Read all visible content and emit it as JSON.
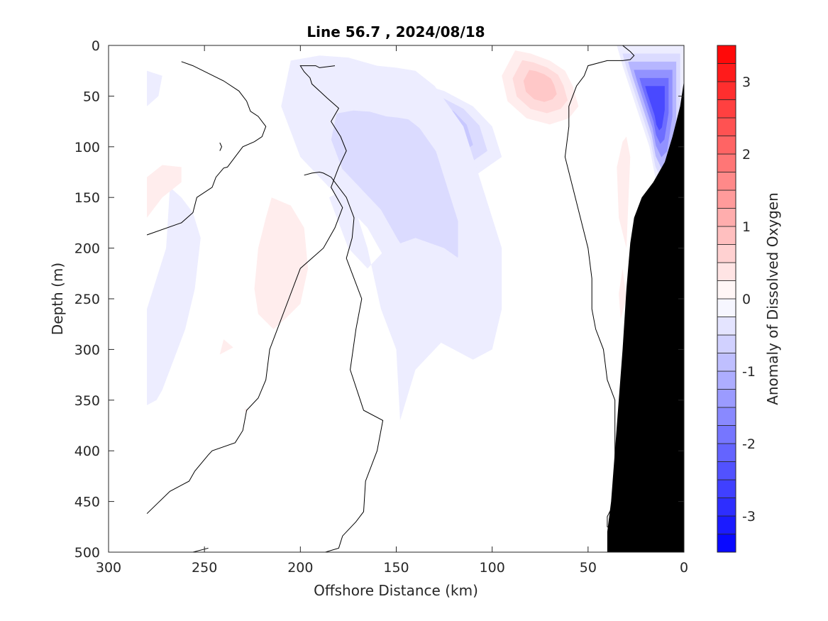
{
  "chart_data": {
    "type": "heatmap",
    "title": "Line 56.7 , 2024/08/18",
    "xlabel": "Offshore Distance (km)",
    "ylabel": "Depth (m)",
    "colorbar_label": "Anomaly of Dissolved Oxygen",
    "xlim": [
      300,
      0
    ],
    "ylim": [
      500,
      0
    ],
    "x_direction": "reversed",
    "y_direction": "reversed",
    "xticks": [
      300,
      250,
      200,
      150,
      100,
      50,
      0
    ],
    "yticks": [
      0,
      50,
      100,
      150,
      200,
      250,
      300,
      350,
      400,
      450,
      500
    ],
    "colorbar_range": [
      -3.5,
      3.5
    ],
    "colorbar_step": 0.25,
    "colorbar_ticks": [
      3,
      2,
      1,
      0,
      -1,
      -2,
      -3
    ],
    "colors": {
      "negative": "#0000ff",
      "positive": "#ff0000",
      "land": "#000000",
      "contour": "#000000"
    },
    "zero_contour_lines": [
      {
        "x": [
          280,
          268,
          258,
          255,
          248,
          246,
          234,
          230,
          228,
          222,
          218,
          216,
          212,
          206,
          200,
          188,
          182,
          178,
          184,
          180,
          176,
          179,
          184,
          180,
          186,
          190,
          194,
          195,
          198,
          200,
          192,
          190,
          182
        ],
        "y": [
          462,
          440,
          430,
          420,
          404,
          400,
          392,
          380,
          360,
          348,
          330,
          300,
          280,
          250,
          220,
          200,
          180,
          160,
          140,
          120,
          104,
          90,
          75,
          62,
          52,
          45,
          38,
          32,
          26,
          20,
          20,
          22,
          20
        ]
      },
      {
        "x": [
          280,
          262,
          256,
          254,
          246,
          244,
          240,
          238,
          234,
          230,
          224,
          220,
          218,
          222,
          226,
          228,
          232,
          240,
          256,
          262
        ],
        "y": [
          187,
          175,
          165,
          150,
          140,
          130,
          121,
          120,
          110,
          100,
          95,
          90,
          80,
          70,
          65,
          55,
          45,
          35,
          20,
          16
        ]
      },
      {
        "x": [
          187,
          180,
          178,
          171,
          167,
          166,
          160,
          157,
          167,
          174,
          171,
          168,
          176,
          173,
          172,
          176,
          180,
          184,
          188,
          190,
          194,
          198
        ],
        "y": [
          500,
          496,
          484,
          470,
          460,
          430,
          400,
          370,
          360,
          320,
          280,
          250,
          210,
          190,
          170,
          150,
          140,
          130,
          126,
          125,
          126,
          128
        ]
      },
      {
        "x": [
          33,
          40,
          40,
          36,
          36,
          40,
          42,
          46,
          48,
          48,
          50,
          54,
          58,
          62,
          60,
          60,
          58,
          56,
          52,
          50,
          40,
          32,
          28,
          26,
          28,
          30,
          32,
          36,
          40,
          42
        ],
        "y": [
          480,
          475,
          465,
          450,
          350,
          330,
          300,
          280,
          260,
          230,
          200,
          170,
          140,
          110,
          80,
          60,
          50,
          40,
          30,
          20,
          15,
          15,
          14,
          10,
          6,
          3,
          0,
          -2,
          -5,
          -5
        ]
      },
      {
        "x": [
          256,
          248
        ],
        "y": [
          500,
          496
        ]
      },
      {
        "x": [
          242,
          241,
          242
        ],
        "y": [
          96,
          100,
          104
        ]
      }
    ],
    "land_boundary": {
      "x": [
        0,
        2,
        6,
        10,
        16,
        22,
        26,
        28,
        30,
        32,
        34,
        36,
        38,
        40,
        40,
        0
      ],
      "y": [
        35,
        60,
        90,
        115,
        135,
        150,
        170,
        195,
        240,
        300,
        350,
        400,
        450,
        480,
        500,
        500
      ]
    },
    "anomaly_features": [
      {
        "kind": "negative",
        "levels": [
          -0.25,
          -0.5,
          -0.75,
          -1.0,
          -1.25
        ],
        "x": [
          150,
          140,
          125,
          110,
          100,
          95,
          110,
          125,
          140,
          150,
          160,
          170,
          175,
          165,
          160,
          150
        ],
        "y": [
          40,
          36,
          45,
          60,
          80,
          110,
          130,
          140,
          120,
          90,
          80,
          75,
          60,
          50,
          45,
          40
        ]
      },
      {
        "kind": "negative",
        "levels": [
          -0.25,
          -0.5
        ],
        "x": [
          205,
          190,
          175,
          160,
          150,
          140,
          130,
          115,
          105,
          95,
          95,
          100,
          110,
          120,
          130,
          140,
          150,
          165,
          180,
          200,
          210,
          205
        ],
        "y": [
          15,
          10,
          12,
          20,
          22,
          25,
          40,
          80,
          140,
          200,
          260,
          300,
          310,
          300,
          290,
          260,
          230,
          180,
          150,
          110,
          60,
          15
        ]
      },
      {
        "kind": "negative",
        "levels": [
          -0.25
        ],
        "x": [
          185,
          175,
          165,
          158,
          150,
          148,
          140,
          130,
          120,
          110,
          105,
          110,
          125,
          140,
          155,
          165,
          175,
          185
        ],
        "y": [
          150,
          140,
          200,
          260,
          300,
          370,
          320,
          300,
          280,
          300,
          260,
          220,
          200,
          190,
          200,
          220,
          200,
          150
        ]
      },
      {
        "kind": "negative",
        "levels": [
          -0.25
        ],
        "x": [
          268,
          262,
          256,
          252,
          255,
          260,
          268,
          272,
          275,
          280,
          280,
          270,
          268
        ],
        "y": [
          140,
          150,
          165,
          190,
          240,
          280,
          320,
          340,
          350,
          355,
          260,
          200,
          140
        ]
      },
      {
        "kind": "negative",
        "levels": [
          -0.25
        ],
        "x": [
          280,
          272,
          274,
          280
        ],
        "y": [
          25,
          30,
          50,
          60
        ]
      },
      {
        "kind": "negative",
        "levels": [
          -0.25,
          -0.5,
          -1.0,
          -1.5,
          -2.0,
          -2.5
        ],
        "x": [
          0,
          10,
          20,
          35,
          32,
          25,
          18,
          15,
          10,
          5,
          0,
          0
        ],
        "y": [
          0,
          0,
          0,
          0,
          20,
          60,
          100,
          130,
          150,
          140,
          80,
          0
        ]
      },
      {
        "kind": "positive",
        "levels": [
          0.25,
          0.5,
          0.75
        ],
        "x": [
          88,
          80,
          70,
          62,
          58,
          55,
          60,
          70,
          82,
          92,
          95,
          88
        ],
        "y": [
          5,
          8,
          15,
          25,
          40,
          60,
          72,
          78,
          72,
          55,
          30,
          5
        ]
      },
      {
        "kind": "positive",
        "levels": [
          0.25
        ],
        "x": [
          215,
          205,
          198,
          196,
          200,
          208,
          214,
          222,
          224,
          222,
          218,
          215
        ],
        "y": [
          150,
          158,
          180,
          220,
          255,
          270,
          280,
          265,
          240,
          200,
          170,
          150
        ]
      },
      {
        "kind": "positive",
        "levels": [
          0.25
        ],
        "x": [
          262,
          272,
          280,
          280,
          272,
          262
        ],
        "y": [
          120,
          118,
          130,
          170,
          150,
          135
        ]
      },
      {
        "kind": "positive",
        "levels": [
          0.25
        ],
        "x": [
          28,
          30,
          32,
          35,
          34,
          30,
          28
        ],
        "y": [
          110,
          90,
          95,
          120,
          170,
          200,
          110
        ]
      },
      {
        "kind": "positive",
        "levels": [
          0.25
        ],
        "x": [
          32,
          30,
          33,
          34,
          32
        ],
        "y": [
          220,
          250,
          270,
          245,
          220
        ]
      },
      {
        "kind": "positive",
        "levels": [
          0.25
        ],
        "x": [
          240,
          235,
          242,
          240
        ],
        "y": [
          290,
          298,
          305,
          290
        ]
      },
      {
        "kind": "positive",
        "levels": [
          0.25
        ],
        "x": [
          229,
          227,
          229
        ],
        "y": [
          358,
          360,
          362
        ]
      }
    ]
  }
}
